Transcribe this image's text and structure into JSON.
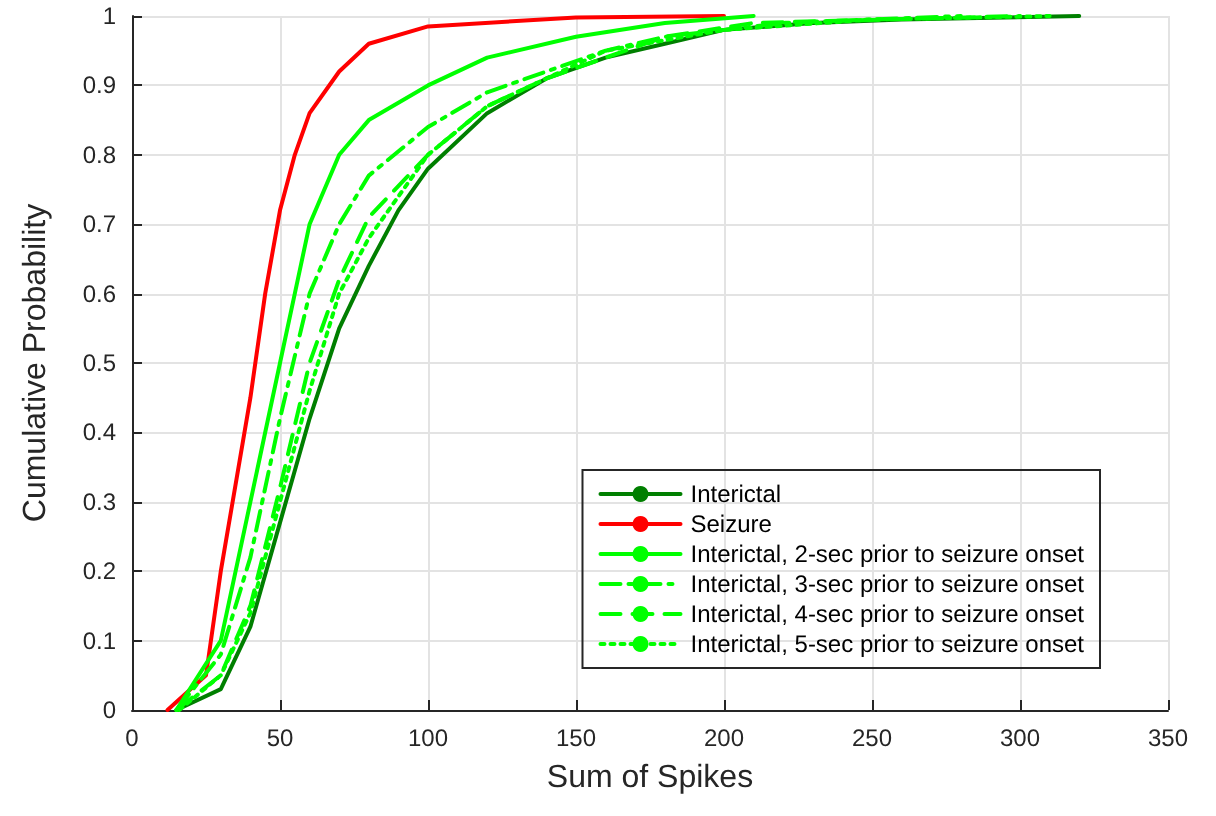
{
  "chart_data": {
    "type": "line",
    "xlabel": "Sum of Spikes",
    "ylabel": "Cumulative Probability",
    "xlim": [
      0,
      350
    ],
    "xticks": [
      0,
      50,
      100,
      150,
      200,
      250,
      300,
      350
    ],
    "ylim": [
      0,
      1
    ],
    "yticks": [
      0,
      0.1,
      0.2,
      0.3,
      0.4,
      0.5,
      0.6,
      0.7,
      0.8,
      0.9,
      1
    ],
    "grid": true,
    "legend": "bottom right",
    "marker": "none",
    "series": [
      {
        "name": "Interictal",
        "color": "#007f00",
        "line_style": "solid",
        "x": [
          15,
          30,
          40,
          50,
          60,
          70,
          80,
          90,
          100,
          120,
          140,
          160,
          180,
          200,
          230,
          260,
          320
        ],
        "values": [
          0,
          0.03,
          0.12,
          0.27,
          0.42,
          0.55,
          0.64,
          0.72,
          0.78,
          0.86,
          0.91,
          0.94,
          0.96,
          0.98,
          0.99,
          0.995,
          1
        ]
      },
      {
        "name": "Seizure",
        "color": "#ff0000",
        "line_style": "solid",
        "x": [
          12,
          25,
          30,
          40,
          45,
          50,
          55,
          60,
          70,
          80,
          100,
          150,
          200
        ],
        "values": [
          0,
          0.05,
          0.2,
          0.45,
          0.6,
          0.72,
          0.8,
          0.86,
          0.92,
          0.96,
          0.985,
          0.998,
          1
        ]
      },
      {
        "name": "Interictal, 2-sec prior to seizure onset",
        "color": "#00ff00",
        "line_style": "solid",
        "x": [
          15,
          30,
          40,
          50,
          55,
          60,
          70,
          80,
          100,
          120,
          150,
          180,
          210
        ],
        "values": [
          0,
          0.1,
          0.3,
          0.5,
          0.6,
          0.7,
          0.8,
          0.85,
          0.9,
          0.94,
          0.97,
          0.99,
          1
        ]
      },
      {
        "name": "Interictal, 3-sec prior to seizure onset",
        "color": "#00ff00",
        "line_style": "dashdot",
        "x": [
          15,
          30,
          40,
          50,
          60,
          70,
          80,
          100,
          120,
          140,
          160,
          180,
          200,
          220,
          280
        ],
        "values": [
          0,
          0.08,
          0.22,
          0.42,
          0.6,
          0.7,
          0.77,
          0.84,
          0.89,
          0.92,
          0.95,
          0.97,
          0.98,
          0.99,
          1
        ]
      },
      {
        "name": "Interictal, 4-sec prior to seizure onset",
        "color": "#00ff00",
        "line_style": "dashed",
        "x": [
          15,
          30,
          40,
          50,
          60,
          70,
          80,
          100,
          120,
          140,
          160,
          180,
          210,
          300
        ],
        "values": [
          0,
          0.05,
          0.15,
          0.32,
          0.5,
          0.62,
          0.71,
          0.8,
          0.87,
          0.91,
          0.94,
          0.97,
          0.99,
          1
        ]
      },
      {
        "name": "Interictal, 5-sec prior to seizure onset",
        "color": "#00ff00",
        "line_style": "dotted",
        "x": [
          16,
          30,
          40,
          50,
          60,
          70,
          80,
          100,
          120,
          140,
          160,
          200,
          250,
          310
        ],
        "values": [
          0,
          0.05,
          0.14,
          0.3,
          0.46,
          0.6,
          0.68,
          0.8,
          0.87,
          0.91,
          0.95,
          0.98,
          0.995,
          1
        ]
      }
    ]
  }
}
